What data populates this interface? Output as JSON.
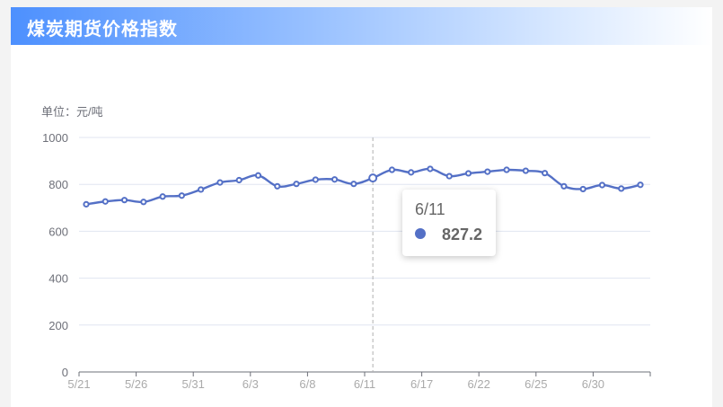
{
  "title": "煤炭期货价格指数",
  "colors": {
    "accent": "#4d90fe",
    "series": "#5470c6",
    "axis": "#6e7079",
    "grid": "#e0e6f1",
    "tooltip_text": "#666666"
  },
  "chart_data": {
    "type": "line",
    "unit_label": "单位：元/吨",
    "ylim": [
      0,
      1000
    ],
    "y_ticks": [
      "0",
      "200",
      "400",
      "600",
      "800",
      "1000"
    ],
    "x_tick_labels": [
      "5/21",
      "5/26",
      "5/31",
      "6/3",
      "6/8",
      "6/11",
      "6/17",
      "6/22",
      "6/25",
      "6/30"
    ],
    "grid": true,
    "series": [
      {
        "values": [
          715,
          727,
          733,
          725,
          748,
          752,
          778,
          808,
          818,
          838,
          792,
          802,
          820,
          821,
          802,
          827.2,
          862,
          851,
          866,
          835,
          847,
          854,
          862,
          858,
          848,
          792,
          780,
          797,
          782,
          798
        ]
      }
    ],
    "highlight_index": 15,
    "tooltip": {
      "date": "6/11",
      "value": "827.2"
    }
  }
}
